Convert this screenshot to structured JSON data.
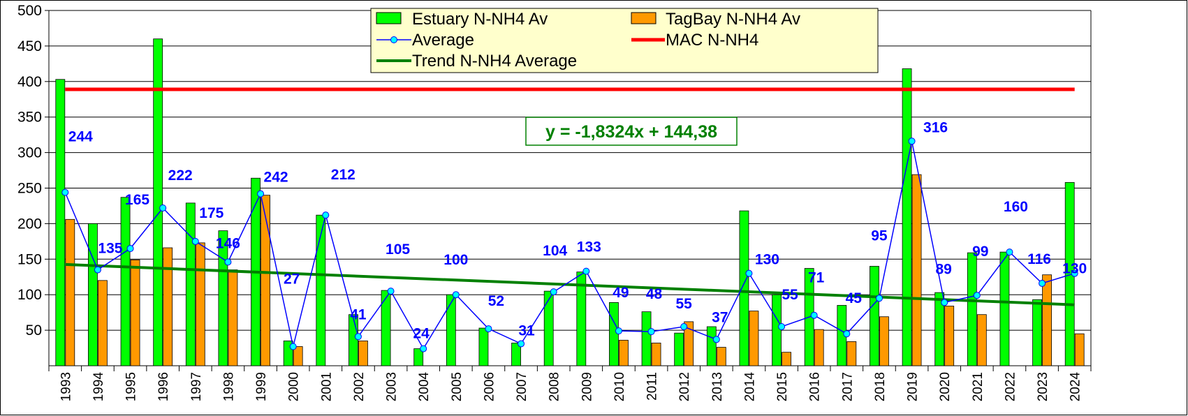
{
  "chart_data": {
    "type": "bar",
    "categories": [
      "1993",
      "1994",
      "1995",
      "1996",
      "1997",
      "1998",
      "1999",
      "2000",
      "2001",
      "2002",
      "2003",
      "2004",
      "2005",
      "2006",
      "2007",
      "2008",
      "2009",
      "2010",
      "2011",
      "2012",
      "2013",
      "2014",
      "2015",
      "2016",
      "2017",
      "2018",
      "2019",
      "2020",
      "2021",
      "2022",
      "2023",
      "2024"
    ],
    "series": [
      {
        "name": "Estuary N-NH4 Av",
        "kind": "bar",
        "color": "#00FF00",
        "values": [
          403,
          200,
          237,
          460,
          229,
          190,
          264,
          35,
          212,
          72,
          106,
          24,
          100,
          53,
          32,
          105,
          132,
          89,
          76,
          46,
          55,
          218,
          100,
          137,
          85,
          140,
          418,
          103,
          159,
          160,
          93,
          258
        ]
      },
      {
        "name": "TagBay N-NH4 Av",
        "kind": "bar",
        "color": "#FF9900",
        "values": [
          206,
          120,
          149,
          166,
          173,
          135,
          240,
          27,
          0,
          35,
          0,
          0,
          0,
          0,
          0,
          0,
          0,
          36,
          32,
          62,
          26,
          77,
          19,
          51,
          34,
          69,
          269,
          84,
          72,
          0,
          128,
          45
        ]
      },
      {
        "name": "Average",
        "kind": "line",
        "color": "#0000FF",
        "marker_color": "#00FFFF",
        "values": [
          244,
          135,
          165,
          222,
          175,
          146,
          242,
          27,
          212,
          41,
          105,
          24,
          100,
          52,
          31,
          104,
          133,
          49,
          48,
          55,
          37,
          130,
          55,
          71,
          45,
          95,
          316,
          89,
          99,
          160,
          116,
          130
        ],
        "labels": [
          "244",
          "135",
          "165",
          "222",
          "175",
          "146",
          "242",
          "27",
          "212",
          "41",
          "105",
          "24",
          "100",
          "52",
          "31",
          "104",
          "133",
          "49",
          "48",
          "55",
          "37",
          "130",
          "55",
          "71",
          "45",
          "95",
          "316",
          "89",
          "99",
          "160",
          "116",
          "130"
        ]
      },
      {
        "name": "MAC N-NH4",
        "kind": "hline",
        "color": "#FF0000",
        "value": 389
      },
      {
        "name": "Trend N-NH4 Average",
        "kind": "trend",
        "color": "#008000",
        "slope": -1.8324,
        "intercept": 144.38
      }
    ],
    "ylim": [
      0,
      500
    ],
    "yticks": [
      "50",
      "100",
      "150",
      "200",
      "250",
      "300",
      "350",
      "400",
      "450",
      "500"
    ],
    "grid": true,
    "legend_position": "top-center",
    "equation": "y = -1,8324x + 144,38",
    "title": "",
    "xlabel": "",
    "ylabel": ""
  }
}
